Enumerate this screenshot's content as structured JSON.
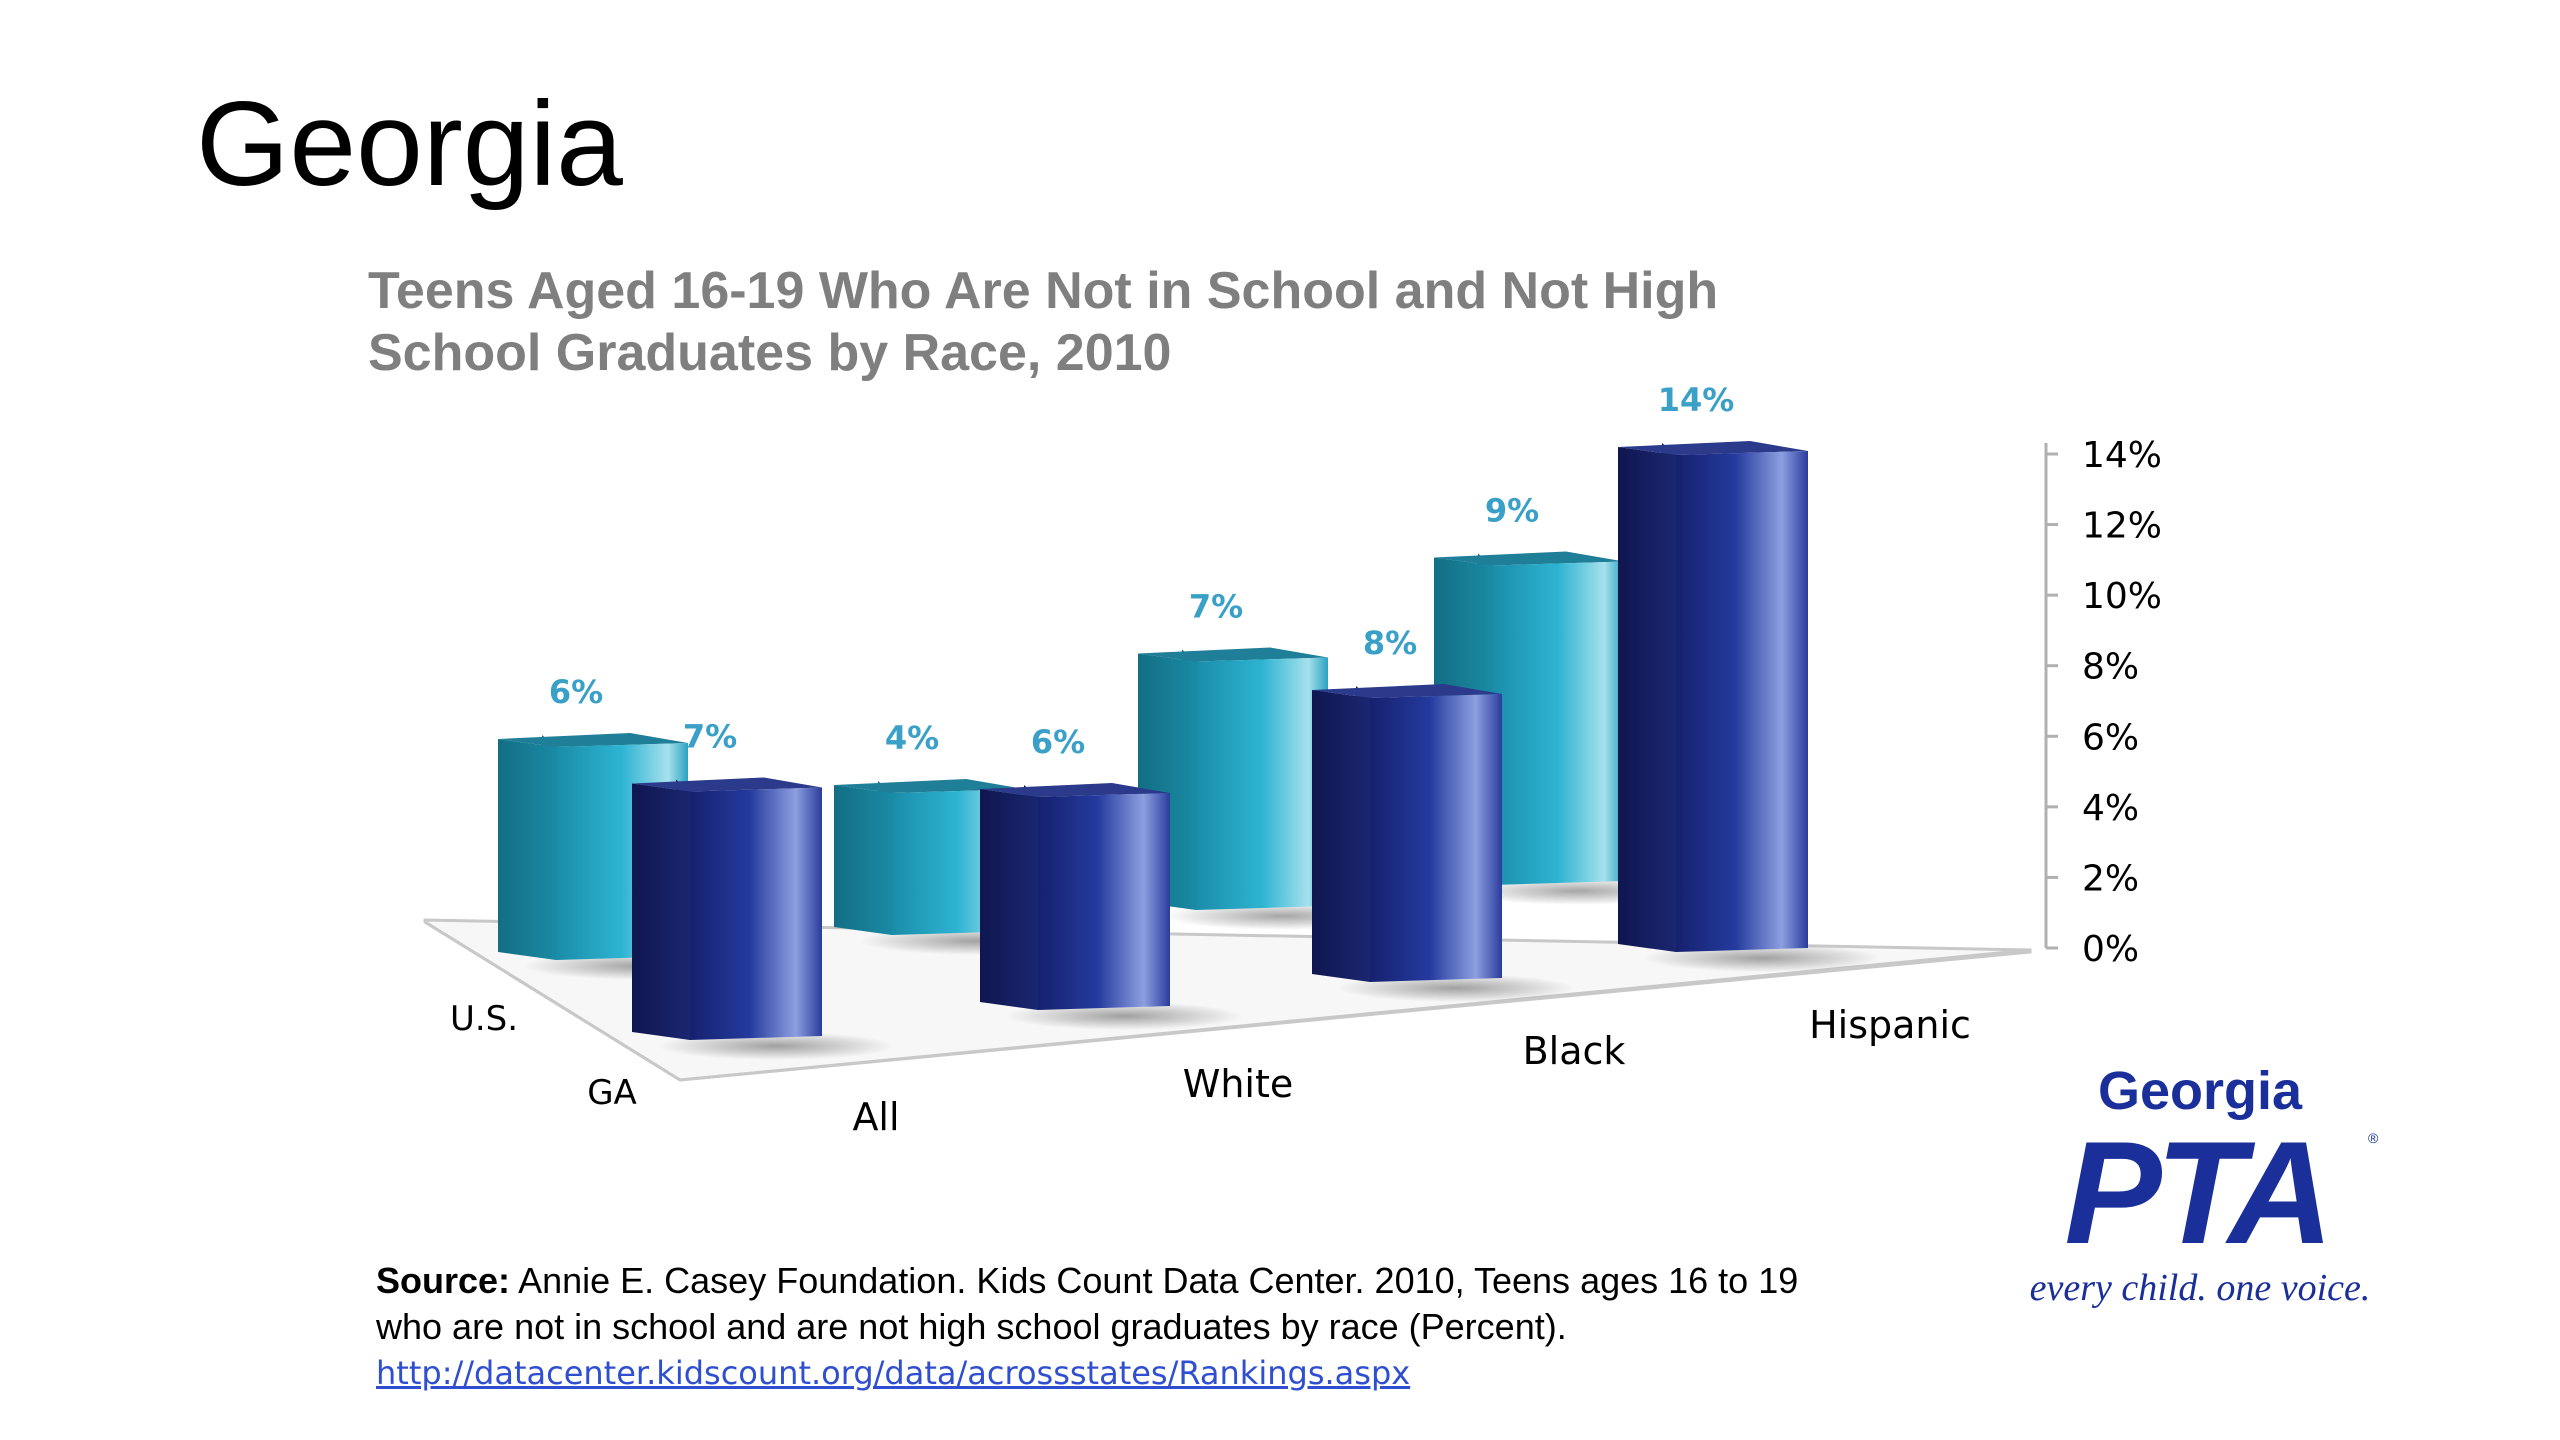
{
  "slide": {
    "title": "Georgia"
  },
  "chart_data": {
    "type": "bar",
    "title_line1": "Teens Aged 16-19 Who Are Not in School and Not High",
    "title_line2": "School Graduates by Race, 2010",
    "categories": [
      "All",
      "White",
      "Black",
      "Hispanic"
    ],
    "series": [
      {
        "name": "U.S.",
        "values": [
          6,
          4,
          7,
          9
        ],
        "labels": [
          "6%",
          "4%",
          "7%",
          "9%"
        ]
      },
      {
        "name": "GA",
        "values": [
          7,
          6,
          8,
          14
        ],
        "labels": [
          "7%",
          "6%",
          "8%",
          "14%"
        ]
      }
    ],
    "ylim": [
      0,
      14
    ],
    "yticks": [
      "0%",
      "2%",
      "4%",
      "6%",
      "8%",
      "10%",
      "12%",
      "14%"
    ],
    "colors": {
      "us": "#2aa8c6",
      "ga": "#1e2d8c",
      "label": "#3aa0c8",
      "title": "#7f7f7f"
    }
  },
  "source": {
    "label": "Source:",
    "text": " Annie E. Casey Foundation. Kids Count Data Center. 2010, Teens ages 16 to 19 who are not in school and are not high school graduates by race (Percent).",
    "link": "http://datacenter.kidscount.org/data/acrossstates/Rankings.aspx"
  },
  "logo": {
    "top": "Georgia",
    "main": "PTA",
    "bottom": "every child. one voice."
  }
}
